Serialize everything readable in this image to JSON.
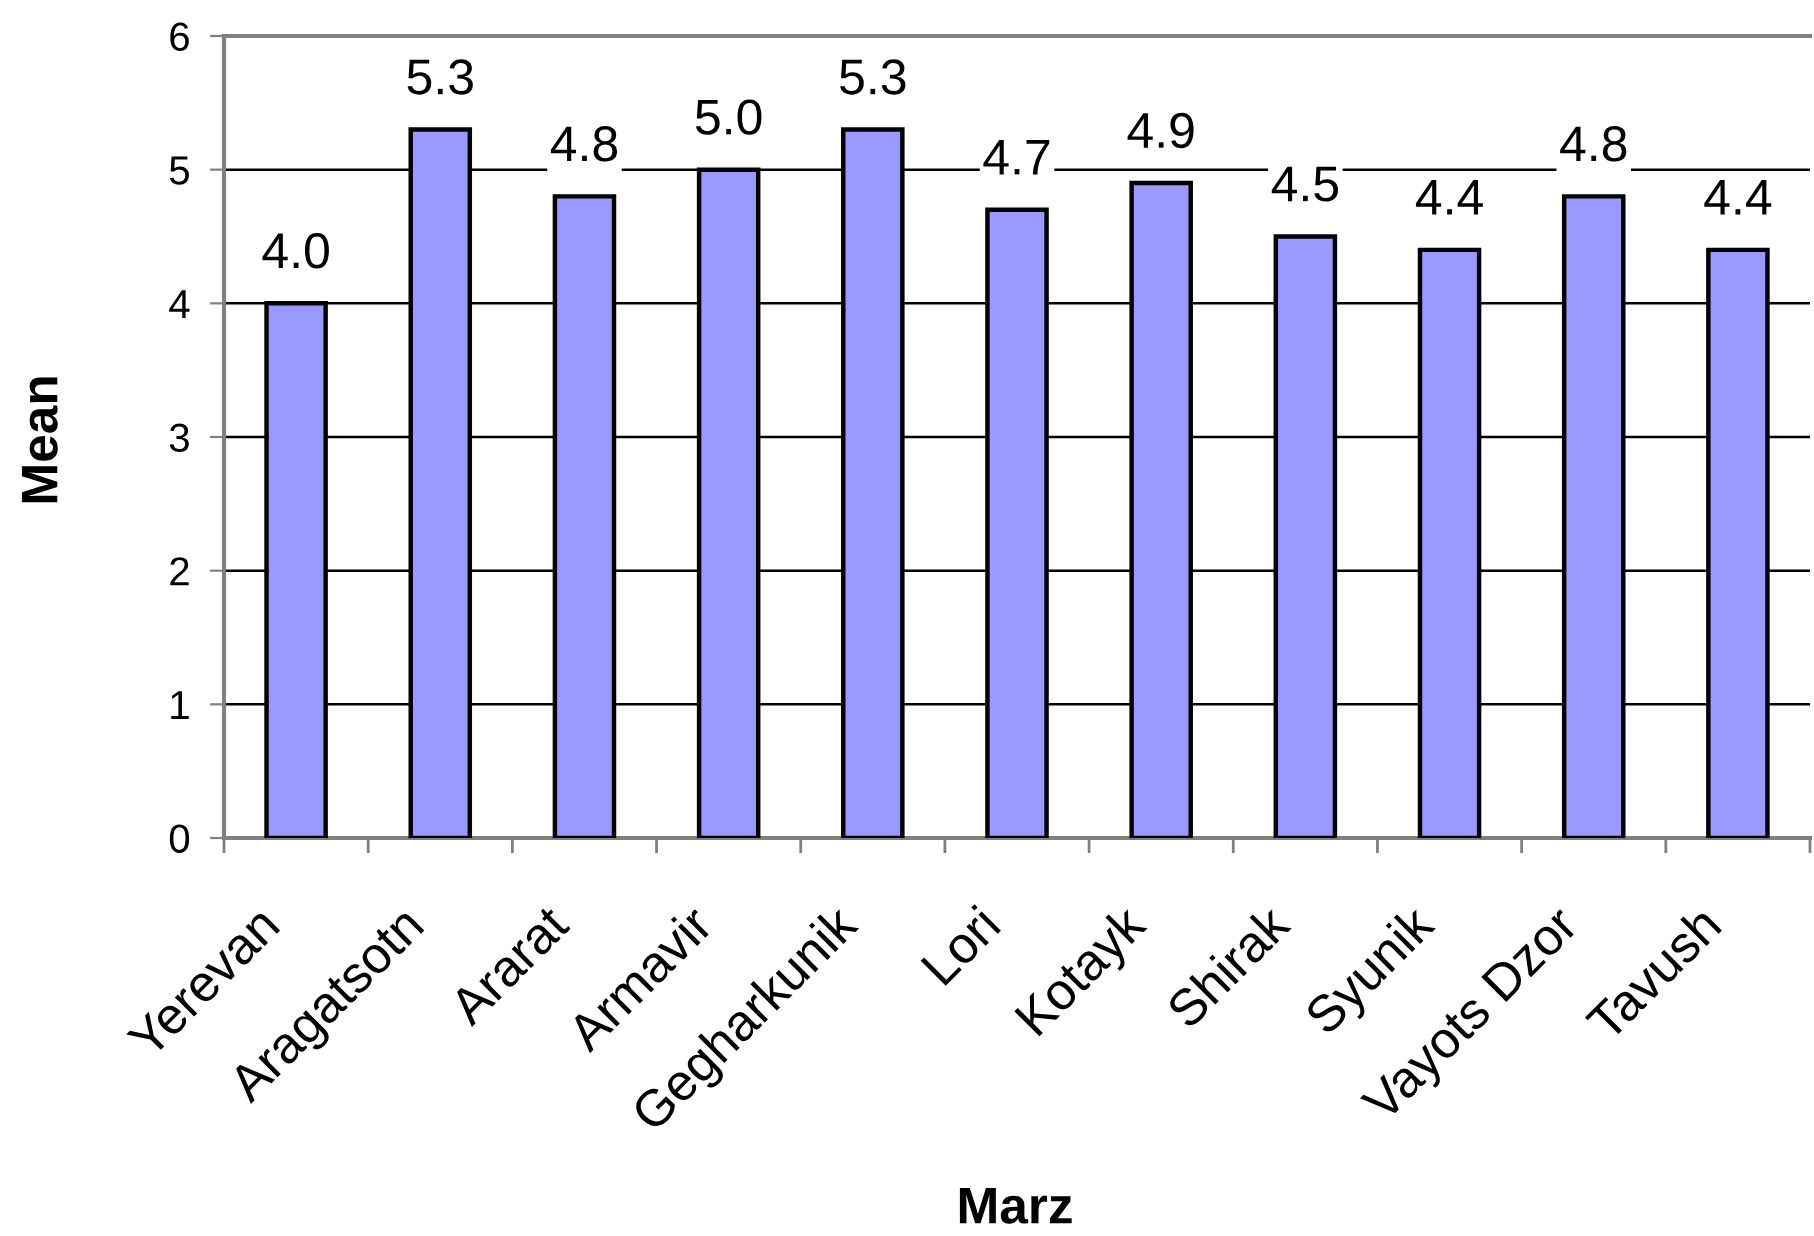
{
  "chart_data": {
    "type": "bar",
    "xlabel": "Marz",
    "ylabel": "Mean",
    "categories": [
      "Yerevan",
      "Aragatsotn",
      "Ararat",
      "Armavir",
      "Gegharkunik",
      "Lori",
      "Kotayk",
      "Shirak",
      "Syunik",
      "Vayots Dzor",
      "Tavush"
    ],
    "values": [
      4.0,
      5.3,
      4.8,
      5.0,
      5.3,
      4.7,
      4.9,
      4.5,
      4.4,
      4.8,
      4.4
    ],
    "value_labels": [
      "4.0",
      "5.3",
      "4.8",
      "5.0",
      "5.3",
      "4.7",
      "4.9",
      "4.5",
      "4.4",
      "4.8",
      "4.4"
    ],
    "color": "#9999ff",
    "ylim": [
      0,
      6
    ],
    "yticks": [
      0,
      1,
      2,
      3,
      4,
      5,
      6
    ],
    "grid": "y",
    "legend": false
  }
}
